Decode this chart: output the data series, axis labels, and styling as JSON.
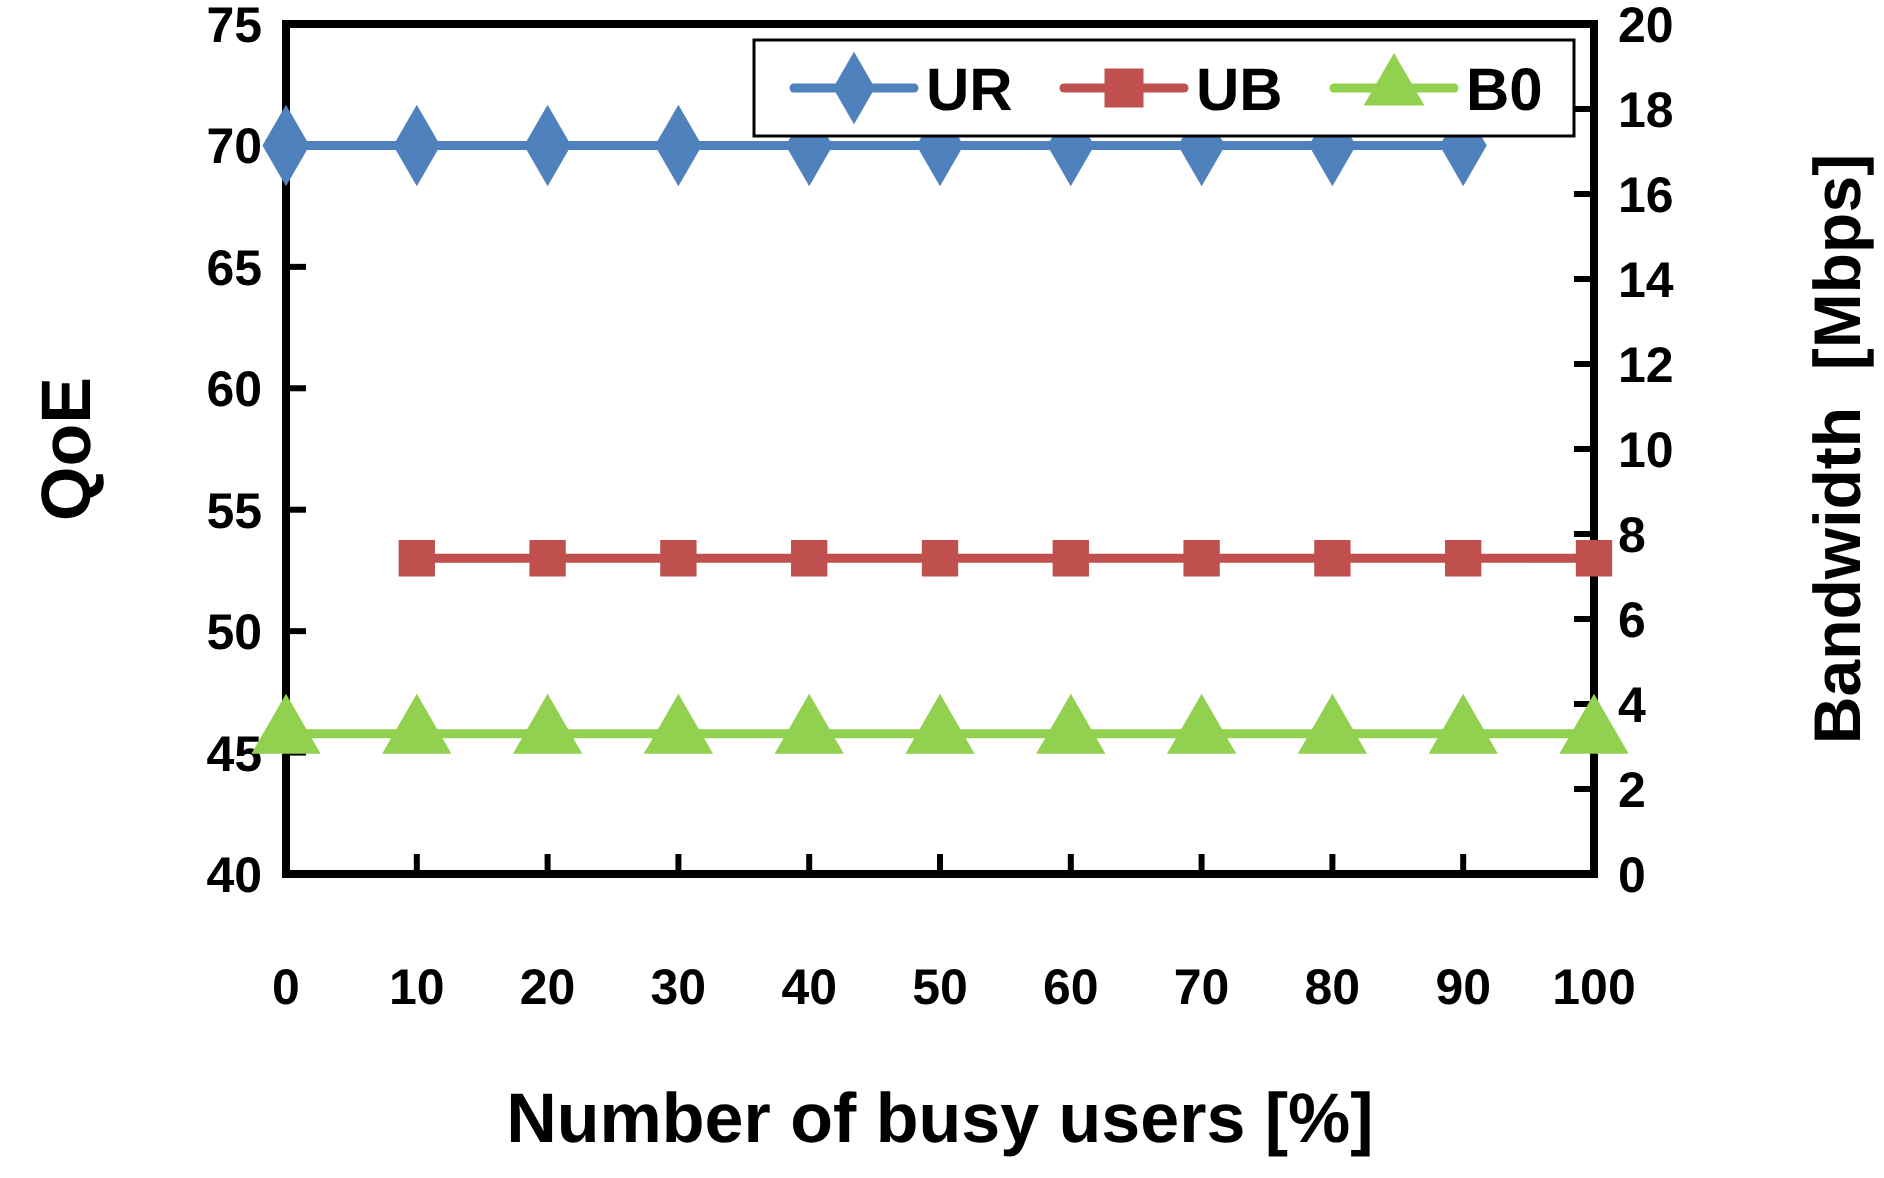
{
  "chart_data": {
    "type": "line",
    "xlabel": "Number of busy users [%]",
    "ylabel": "QoE",
    "y2label": "Bandwidth  [Mbps]",
    "xlim": [
      0,
      100
    ],
    "xticks": [
      0,
      10,
      20,
      30,
      40,
      50,
      60,
      70,
      80,
      90,
      100
    ],
    "ylim": [
      40,
      75
    ],
    "yticks": [
      40,
      45,
      50,
      55,
      60,
      65,
      70,
      75
    ],
    "y2lim": [
      0,
      20
    ],
    "y2ticks": [
      0,
      2,
      4,
      6,
      8,
      10,
      12,
      14,
      16,
      18,
      20
    ],
    "grid": false,
    "legend": "top right",
    "line_style": "solid",
    "series": [
      {
        "name": "UR",
        "color": "#4f81bd",
        "marker": "diamond",
        "x": [
          0,
          10,
          20,
          30,
          40,
          50,
          60,
          70,
          80,
          90
        ],
        "values": [
          70,
          70,
          70,
          70,
          70,
          70,
          70,
          70,
          70,
          70
        ]
      },
      {
        "name": "UB",
        "color": "#c0504d",
        "marker": "square",
        "x": [
          10,
          20,
          30,
          40,
          50,
          60,
          70,
          80,
          90,
          100
        ],
        "values": [
          53,
          53,
          53,
          53,
          53,
          53,
          53,
          53,
          53,
          53
        ]
      },
      {
        "name": "B0",
        "color": "#92d050",
        "marker": "triangle",
        "axis": "y2",
        "x": [
          0,
          10,
          20,
          30,
          40,
          50,
          60,
          70,
          80,
          90,
          100
        ],
        "values": [
          3.3,
          3.3,
          3.3,
          3.3,
          3.3,
          3.3,
          3.3,
          3.3,
          3.3,
          3.3,
          3.3
        ]
      }
    ]
  }
}
